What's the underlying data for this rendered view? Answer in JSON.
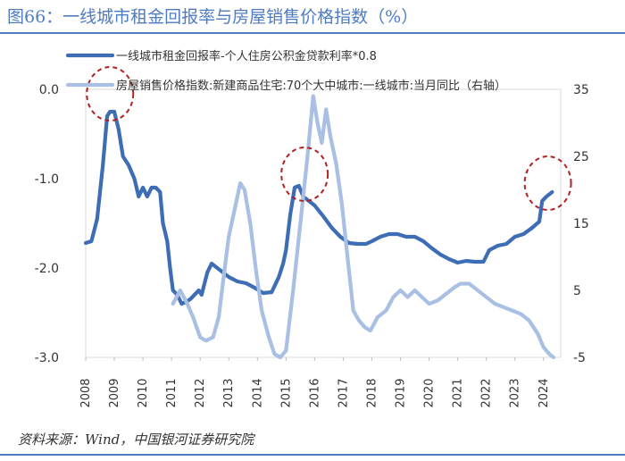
{
  "figure": {
    "title": "图66：一线城市租金回报率与房屋销售价格指数（%）",
    "source": "资料来源：Wind，中国银河证券研究院"
  },
  "colors": {
    "title": "#4f7cc2",
    "series1": "#3d6db5",
    "series2": "#a9bfe3",
    "marker": "#b22222"
  },
  "chart_data": {
    "type": "line",
    "title": "图66：一线城市租金回报率与房屋销售价格指数（%）",
    "x_ticks": [
      "2008",
      "2009",
      "2010",
      "2011",
      "2012",
      "2013",
      "2014",
      "2015",
      "2016",
      "2017",
      "2018",
      "2019",
      "2020",
      "2021",
      "2022",
      "2023",
      "2024"
    ],
    "y_left": {
      "range": [
        -3.0,
        0.0
      ],
      "ticks": [
        "0.0",
        "-1.0",
        "-2.0",
        "-3.0"
      ]
    },
    "y_right": {
      "range": [
        -5,
        35
      ],
      "ticks": [
        "35",
        "25",
        "15",
        "5",
        "-5"
      ]
    },
    "series": [
      {
        "name": "一线城市租金回报率-个人住房公积金贷款利率*0.8",
        "axis": "left",
        "points": [
          [
            2008.0,
            -1.72
          ],
          [
            2008.2,
            -1.7
          ],
          [
            2008.4,
            -1.45
          ],
          [
            2008.6,
            -0.85
          ],
          [
            2008.75,
            -0.3
          ],
          [
            2008.85,
            -0.25
          ],
          [
            2009.0,
            -0.25
          ],
          [
            2009.15,
            -0.45
          ],
          [
            2009.3,
            -0.75
          ],
          [
            2009.5,
            -0.85
          ],
          [
            2009.7,
            -1.0
          ],
          [
            2009.85,
            -1.2
          ],
          [
            2010.0,
            -1.1
          ],
          [
            2010.15,
            -1.2
          ],
          [
            2010.3,
            -1.1
          ],
          [
            2010.45,
            -1.1
          ],
          [
            2010.6,
            -1.15
          ],
          [
            2010.7,
            -1.5
          ],
          [
            2010.85,
            -1.7
          ],
          [
            2010.95,
            -2.0
          ],
          [
            2011.05,
            -2.25
          ],
          [
            2011.2,
            -2.3
          ],
          [
            2011.35,
            -2.4
          ],
          [
            2011.5,
            -2.38
          ],
          [
            2011.65,
            -2.35
          ],
          [
            2011.8,
            -2.3
          ],
          [
            2011.95,
            -2.25
          ],
          [
            2012.05,
            -2.3
          ],
          [
            2012.25,
            -2.05
          ],
          [
            2012.4,
            -1.95
          ],
          [
            2012.6,
            -2.0
          ],
          [
            2012.8,
            -2.05
          ],
          [
            2013.0,
            -2.1
          ],
          [
            2013.3,
            -2.15
          ],
          [
            2013.6,
            -2.17
          ],
          [
            2013.9,
            -2.22
          ],
          [
            2014.2,
            -2.28
          ],
          [
            2014.5,
            -2.27
          ],
          [
            2014.75,
            -2.1
          ],
          [
            2014.9,
            -1.95
          ],
          [
            2015.0,
            -1.8
          ],
          [
            2015.15,
            -1.4
          ],
          [
            2015.3,
            -1.1
          ],
          [
            2015.45,
            -1.08
          ],
          [
            2015.6,
            -1.2
          ],
          [
            2015.8,
            -1.25
          ],
          [
            2016.0,
            -1.3
          ],
          [
            2016.3,
            -1.42
          ],
          [
            2016.6,
            -1.55
          ],
          [
            2016.9,
            -1.65
          ],
          [
            2017.2,
            -1.72
          ],
          [
            2017.5,
            -1.73
          ],
          [
            2017.8,
            -1.73
          ],
          [
            2018.0,
            -1.7
          ],
          [
            2018.3,
            -1.65
          ],
          [
            2018.6,
            -1.62
          ],
          [
            2018.9,
            -1.62
          ],
          [
            2019.2,
            -1.65
          ],
          [
            2019.5,
            -1.65
          ],
          [
            2019.8,
            -1.7
          ],
          [
            2020.1,
            -1.78
          ],
          [
            2020.4,
            -1.85
          ],
          [
            2020.7,
            -1.9
          ],
          [
            2021.0,
            -1.94
          ],
          [
            2021.3,
            -1.92
          ],
          [
            2021.6,
            -1.93
          ],
          [
            2021.9,
            -1.93
          ],
          [
            2022.1,
            -1.8
          ],
          [
            2022.4,
            -1.75
          ],
          [
            2022.7,
            -1.73
          ],
          [
            2023.0,
            -1.65
          ],
          [
            2023.3,
            -1.62
          ],
          [
            2023.6,
            -1.55
          ],
          [
            2023.85,
            -1.48
          ],
          [
            2023.95,
            -1.25
          ],
          [
            2024.1,
            -1.2
          ],
          [
            2024.3,
            -1.15
          ]
        ]
      },
      {
        "name": "房屋销售价格指数:新建商品住宅:70个大中城市:一线城市:当月同比（右轴）",
        "axis": "right",
        "points": [
          [
            2011.05,
            3.0
          ],
          [
            2011.3,
            5.0
          ],
          [
            2011.55,
            3.0
          ],
          [
            2011.75,
            1.0
          ],
          [
            2012.0,
            -2.0
          ],
          [
            2012.2,
            -2.5
          ],
          [
            2012.45,
            -2.0
          ],
          [
            2012.65,
            1.0
          ],
          [
            2012.85,
            8.0
          ],
          [
            2013.0,
            13.0
          ],
          [
            2013.25,
            18.0
          ],
          [
            2013.4,
            21.0
          ],
          [
            2013.55,
            20.0
          ],
          [
            2013.75,
            15.0
          ],
          [
            2013.95,
            8.0
          ],
          [
            2014.15,
            2.0
          ],
          [
            2014.4,
            -2.0
          ],
          [
            2014.6,
            -4.5
          ],
          [
            2014.8,
            -5.0
          ],
          [
            2015.0,
            -4.0
          ],
          [
            2015.25,
            5.0
          ],
          [
            2015.5,
            15.0
          ],
          [
            2015.75,
            25.0
          ],
          [
            2015.95,
            34.0
          ],
          [
            2016.1,
            30.0
          ],
          [
            2016.25,
            27.0
          ],
          [
            2016.4,
            32.0
          ],
          [
            2016.55,
            28.0
          ],
          [
            2016.75,
            24.0
          ],
          [
            2016.95,
            18.0
          ],
          [
            2017.15,
            10.0
          ],
          [
            2017.35,
            2.0
          ],
          [
            2017.55,
            0.5
          ],
          [
            2017.75,
            -0.5
          ],
          [
            2017.95,
            -1.0
          ],
          [
            2018.2,
            1.0
          ],
          [
            2018.5,
            2.0
          ],
          [
            2018.75,
            4.0
          ],
          [
            2019.0,
            5.0
          ],
          [
            2019.25,
            4.0
          ],
          [
            2019.5,
            5.0
          ],
          [
            2019.75,
            4.0
          ],
          [
            2020.0,
            3.0
          ],
          [
            2020.3,
            3.5
          ],
          [
            2020.6,
            4.5
          ],
          [
            2020.9,
            5.5
          ],
          [
            2021.1,
            6.0
          ],
          [
            2021.4,
            6.0
          ],
          [
            2021.7,
            5.0
          ],
          [
            2022.0,
            4.0
          ],
          [
            2022.3,
            3.0
          ],
          [
            2022.6,
            2.5
          ],
          [
            2022.9,
            2.0
          ],
          [
            2023.2,
            1.5
          ],
          [
            2023.5,
            0.5
          ],
          [
            2023.8,
            -1.5
          ],
          [
            2024.0,
            -3.5
          ],
          [
            2024.2,
            -4.5
          ],
          [
            2024.35,
            -5.0
          ]
        ]
      }
    ],
    "annotations": [
      {
        "type": "circle",
        "x": 2008.85,
        "y_axis": "left",
        "y": -0.05
      },
      {
        "type": "circle",
        "x": 2015.65,
        "y_axis": "left",
        "y": -0.95
      },
      {
        "type": "circle",
        "x": 2024.15,
        "y_axis": "left",
        "y": -1.05
      }
    ]
  }
}
